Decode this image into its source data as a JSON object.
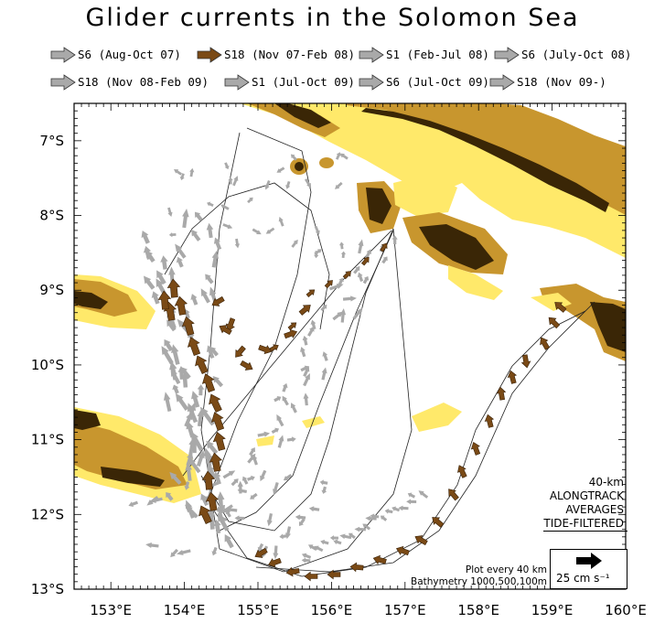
{
  "title": "Glider currents in the Solomon Sea",
  "legend": [
    {
      "label": "S6 (Aug-Oct 07)",
      "color": "#a9a9a9"
    },
    {
      "label": "S18 (Nov 07-Feb 08)",
      "color": "#7a4a16"
    },
    {
      "label": "S1 (Feb-Jul 08)",
      "color": "#a9a9a9"
    },
    {
      "label": "S6 (July-Oct 08)",
      "color": "#a9a9a9"
    },
    {
      "label": "S18 (Nov 08-Feb 09)",
      "color": "#a9a9a9"
    },
    {
      "label": "S1 (Jul-Oct 09)",
      "color": "#a9a9a9"
    },
    {
      "label": "S6 (Jul-Oct 09)",
      "color": "#a9a9a9"
    },
    {
      "label": "S18 (Nov 09-)",
      "color": "#a9a9a9"
    }
  ],
  "map": {
    "lat_labels": [
      "7°S",
      "8°S",
      "9°S",
      "10°S",
      "11°S",
      "12°S",
      "13°S"
    ],
    "lon_labels": [
      "153°E",
      "154°E",
      "155°E",
      "156°E",
      "157°E",
      "158°E",
      "159°E",
      "160°E"
    ],
    "lon_range": [
      152.5,
      160.0
    ],
    "lat_range": [
      -13.0,
      -6.5
    ],
    "bathymetry_colors": {
      "land": "#3a2606",
      "shelf_100m": "#c8962e",
      "slope_500m": "#e8c060",
      "deep_1000m": "#ffe96a",
      "ocean": "#ffffff"
    }
  },
  "info": {
    "line1": "40-km",
    "line2": "ALONGTRACK",
    "line3": "AVERAGES",
    "line4": "TIDE-FILTERED"
  },
  "note": {
    "line1": "Plot every 40 km",
    "line2": "Bathymetry 1000,500,100m"
  },
  "scale": {
    "label": "25 cm s⁻¹"
  }
}
